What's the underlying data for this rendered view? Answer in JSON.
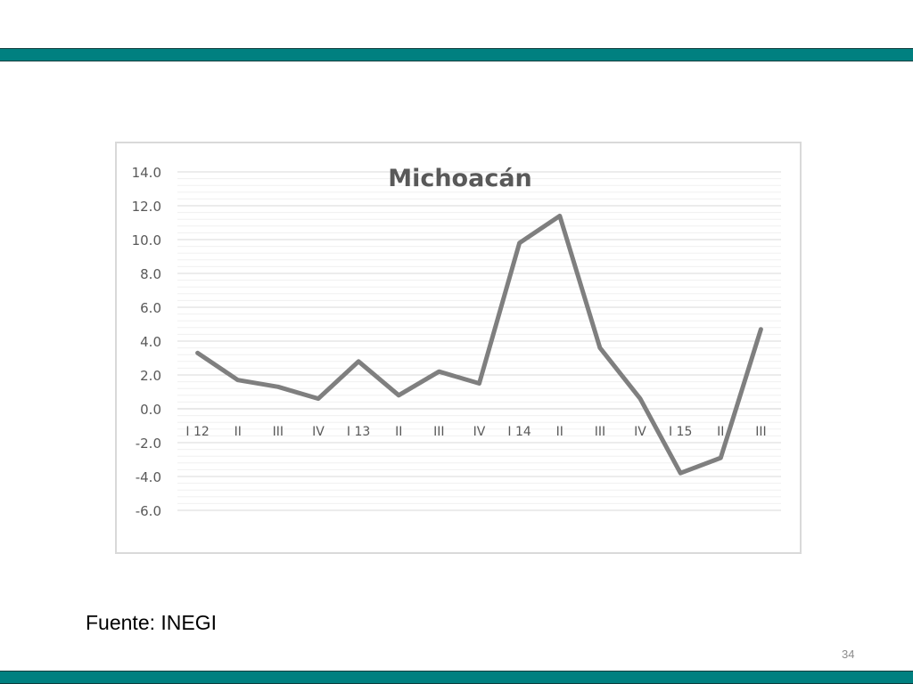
{
  "slide": {
    "source": "Fuente: INEGI",
    "page_number": "34",
    "band_color": "#008080"
  },
  "chart_data": {
    "type": "line",
    "title": "Michoacán",
    "xlabel": "",
    "ylabel": "",
    "categories": [
      "I 12",
      "II",
      "III",
      "IV",
      "I 13",
      "II",
      "III",
      "IV",
      "I 14",
      "II",
      "III",
      "IV",
      "I 15",
      "II",
      "III"
    ],
    "series": [
      {
        "values": [
          3.3,
          1.7,
          1.3,
          0.6,
          2.8,
          0.8,
          2.2,
          1.5,
          9.8,
          11.4,
          3.6,
          0.6,
          -3.8,
          -2.9,
          4.7
        ],
        "color": "#7f7f7f"
      }
    ],
    "ylim": [
      -6.0,
      14.0
    ],
    "y_ticks": [
      "14.0",
      "12.0",
      "10.0",
      "8.0",
      "6.0",
      "4.0",
      "2.0",
      "0.0",
      "-2.0",
      "-4.0",
      "-6.0"
    ],
    "grid": true,
    "legend": "none"
  }
}
